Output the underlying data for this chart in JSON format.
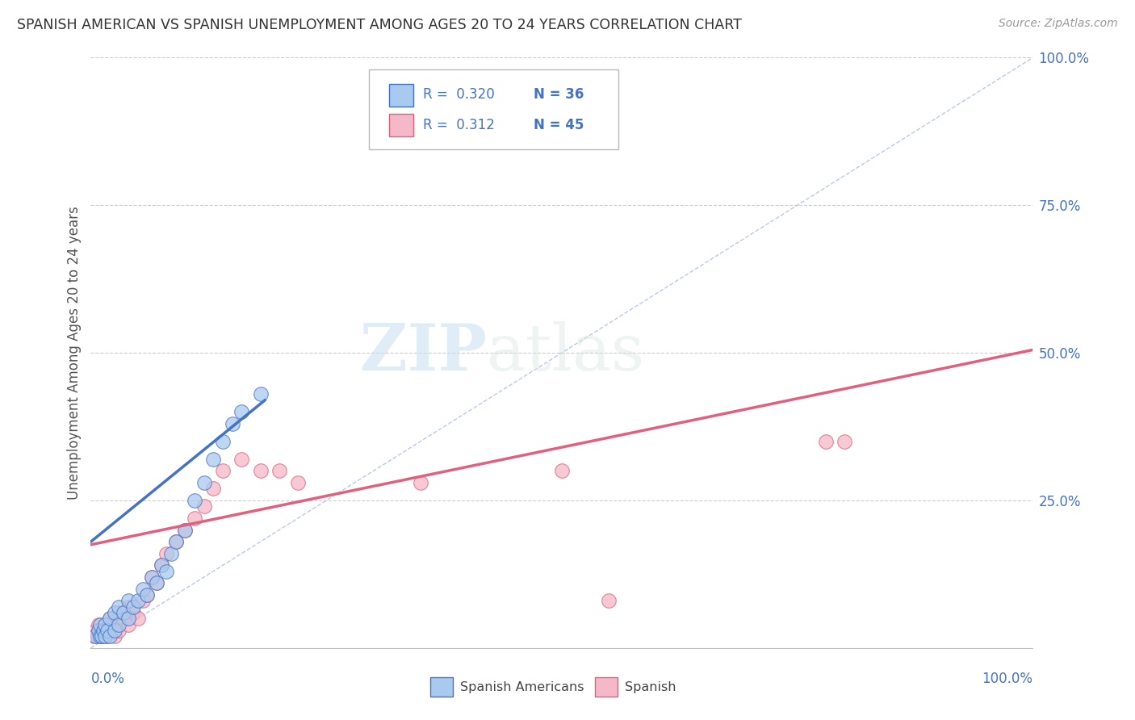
{
  "title": "SPANISH AMERICAN VS SPANISH UNEMPLOYMENT AMONG AGES 20 TO 24 YEARS CORRELATION CHART",
  "source": "Source: ZipAtlas.com",
  "ylabel": "Unemployment Among Ages 20 to 24 years",
  "xlim": [
    0,
    1
  ],
  "ylim": [
    0,
    1
  ],
  "yticks": [
    0.0,
    0.25,
    0.5,
    0.75,
    1.0
  ],
  "ytick_labels": [
    "",
    "25.0%",
    "50.0%",
    "75.0%",
    "100.0%"
  ],
  "legend_r1": "R =  0.320",
  "legend_n1": "N = 36",
  "legend_r2": "R =  0.312",
  "legend_n2": "N = 45",
  "color_blue": "#aac9ee",
  "color_pink": "#f5b8c8",
  "line_blue": "#4472c4",
  "line_pink": "#e0607e",
  "diag_color": "#9ab5d9",
  "watermark_zip": "ZIP",
  "watermark_atlas": "atlas",
  "blue_x": [
    0.005,
    0.008,
    0.01,
    0.01,
    0.012,
    0.013,
    0.015,
    0.015,
    0.018,
    0.02,
    0.02,
    0.025,
    0.025,
    0.03,
    0.03,
    0.035,
    0.04,
    0.04,
    0.045,
    0.05,
    0.055,
    0.06,
    0.065,
    0.07,
    0.075,
    0.08,
    0.085,
    0.09,
    0.1,
    0.11,
    0.12,
    0.13,
    0.14,
    0.15,
    0.16,
    0.18
  ],
  "blue_y": [
    0.02,
    0.03,
    0.02,
    0.04,
    0.02,
    0.03,
    0.02,
    0.04,
    0.03,
    0.02,
    0.05,
    0.03,
    0.06,
    0.04,
    0.07,
    0.06,
    0.05,
    0.08,
    0.07,
    0.08,
    0.1,
    0.09,
    0.12,
    0.11,
    0.14,
    0.13,
    0.16,
    0.18,
    0.2,
    0.25,
    0.28,
    0.32,
    0.35,
    0.38,
    0.4,
    0.43
  ],
  "pink_x": [
    0.003,
    0.005,
    0.007,
    0.008,
    0.01,
    0.01,
    0.012,
    0.013,
    0.015,
    0.015,
    0.018,
    0.02,
    0.02,
    0.022,
    0.025,
    0.025,
    0.028,
    0.03,
    0.03,
    0.035,
    0.04,
    0.04,
    0.045,
    0.05,
    0.055,
    0.06,
    0.065,
    0.07,
    0.075,
    0.08,
    0.09,
    0.1,
    0.11,
    0.12,
    0.13,
    0.14,
    0.16,
    0.18,
    0.2,
    0.22,
    0.35,
    0.5,
    0.55,
    0.78,
    0.8
  ],
  "pink_y": [
    0.02,
    0.03,
    0.02,
    0.04,
    0.02,
    0.03,
    0.02,
    0.03,
    0.02,
    0.04,
    0.02,
    0.03,
    0.05,
    0.03,
    0.02,
    0.05,
    0.04,
    0.03,
    0.06,
    0.05,
    0.04,
    0.07,
    0.06,
    0.05,
    0.08,
    0.09,
    0.12,
    0.11,
    0.14,
    0.16,
    0.18,
    0.2,
    0.22,
    0.24,
    0.27,
    0.3,
    0.32,
    0.3,
    0.3,
    0.28,
    0.28,
    0.3,
    0.08,
    0.35,
    0.35
  ],
  "blue_line_x": [
    0.0,
    0.185
  ],
  "blue_line_y": [
    0.18,
    0.42
  ],
  "pink_line_x": [
    0.0,
    1.0
  ],
  "pink_line_y": [
    0.175,
    0.505
  ],
  "diag_line_x": [
    0.0,
    1.0
  ],
  "diag_line_y": [
    0.0,
    1.0
  ]
}
